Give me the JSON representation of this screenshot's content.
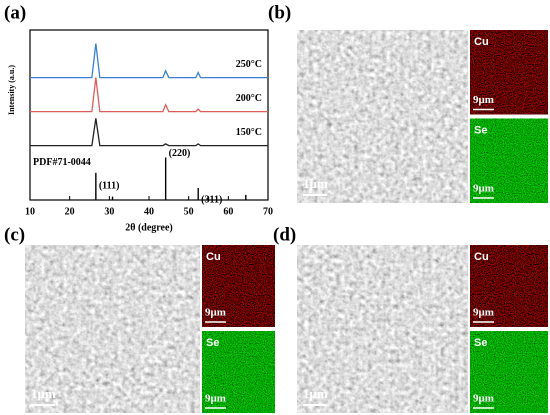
{
  "chart_data": {
    "type": "line",
    "panel_label": "(a)",
    "xlabel": "2θ (degree)",
    "ylabel": "Intensity (a.u.)",
    "xlim": [
      10,
      70
    ],
    "xticks": [
      10,
      20,
      30,
      40,
      50,
      60,
      70
    ],
    "ylim": [
      0,
      100
    ],
    "x": [
      10,
      25.6,
      26.6,
      27.6,
      43.5,
      44.2,
      45,
      51.8,
      52.4,
      53,
      70
    ],
    "series": [
      {
        "name": "250°C",
        "color": "#3a7fd5",
        "values": [
          72,
          72,
          92,
          72,
          72,
          76,
          72,
          72,
          75,
          72,
          72
        ]
      },
      {
        "name": "200°C",
        "color": "#e05a5a",
        "values": [
          52,
          52,
          72,
          52,
          52,
          56,
          52,
          52,
          53.5,
          52,
          52
        ]
      },
      {
        "name": "150°C",
        "color": "#222222",
        "values": [
          32,
          32,
          48,
          32,
          32,
          33,
          32,
          32,
          33,
          32,
          32
        ]
      }
    ],
    "reference": {
      "name": "PDF#71-0044",
      "color": "#000000",
      "x": [
        26.6,
        30.8,
        44.2,
        52.4,
        55,
        64.4
      ],
      "values": [
        16,
        2,
        25,
        7,
        2,
        3
      ]
    },
    "peak_labels": [
      {
        "x": 26.6,
        "label": "(111)"
      },
      {
        "x": 44.2,
        "label": "(220)"
      },
      {
        "x": 52.4,
        "label": "(311)"
      }
    ]
  },
  "panels": [
    {
      "label": "(b)",
      "scale_bar": "1μm",
      "maps": [
        {
          "element": "Cu",
          "scale_bar": "9μm"
        },
        {
          "element": "Se",
          "scale_bar": "9μm"
        }
      ]
    },
    {
      "label": "(c)",
      "scale_bar": "1μm",
      "maps": [
        {
          "element": "Cu",
          "scale_bar": "9μm"
        },
        {
          "element": "Se",
          "scale_bar": "9μm"
        }
      ]
    },
    {
      "label": "(d)",
      "scale_bar": "1μm",
      "maps": [
        {
          "element": "Cu",
          "scale_bar": "9μm"
        },
        {
          "element": "Se",
          "scale_bar": "9μm"
        }
      ]
    }
  ]
}
